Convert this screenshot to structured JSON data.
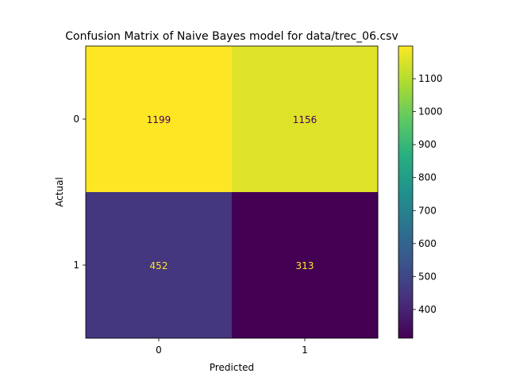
{
  "chart_data": {
    "type": "heatmap",
    "title": "Confusion Matrix of Naive Bayes model for data/trec_06.csv",
    "xlabel": "Predicted",
    "ylabel": "Actual",
    "x_categories": [
      "0",
      "1"
    ],
    "y_categories": [
      "0",
      "1"
    ],
    "values": [
      [
        1199,
        1156
      ],
      [
        452,
        313
      ]
    ],
    "colormap": "viridis",
    "colorbar": {
      "range": [
        313,
        1199
      ],
      "ticks": [
        400,
        500,
        600,
        700,
        800,
        900,
        1000,
        1100
      ],
      "tick_labels": [
        "400",
        "500",
        "600",
        "700",
        "800",
        "900",
        "1000",
        "1100"
      ]
    },
    "text_color_dark_cell": "#fde725",
    "text_color_light_cell": "#440154"
  }
}
